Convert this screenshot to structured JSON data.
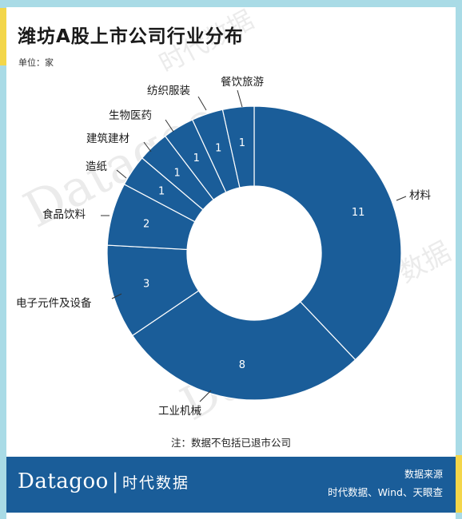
{
  "title": "潍坊A股上市公司行业分布",
  "unit": "单位：家",
  "note": "注：数据不包括已退市公司",
  "footer": {
    "logo_en": "Datagoo",
    "logo_sep": "|",
    "logo_cn": "时代数据",
    "source_title": "数据来源",
    "source_text": "时代数据、Wind、天眼查"
  },
  "watermark": {
    "text_en": "Datagoo",
    "text_cn": "时代数据",
    "text_cn_short": "数据"
  },
  "colors": {
    "slice": "#1a5d99",
    "slice_border": "#ffffff",
    "frame": "#a9dbe6",
    "accent": "#f3d64a",
    "footer_bg": "#1a5d99"
  },
  "chart_data": {
    "type": "pie",
    "variant": "donut",
    "unit": "家",
    "slices": [
      {
        "label": "材料",
        "value": 11
      },
      {
        "label": "工业机械",
        "value": 8
      },
      {
        "label": "电子元件及设备",
        "value": 3
      },
      {
        "label": "食品饮料",
        "value": 2
      },
      {
        "label": "造纸",
        "value": 1
      },
      {
        "label": "建筑建材",
        "value": 1
      },
      {
        "label": "生物医药",
        "value": 1
      },
      {
        "label": "纺织服装",
        "value": 1
      },
      {
        "label": "餐饮旅游",
        "value": 1
      }
    ],
    "start": "12 o'clock",
    "direction": "clockwise",
    "legend": "none"
  }
}
